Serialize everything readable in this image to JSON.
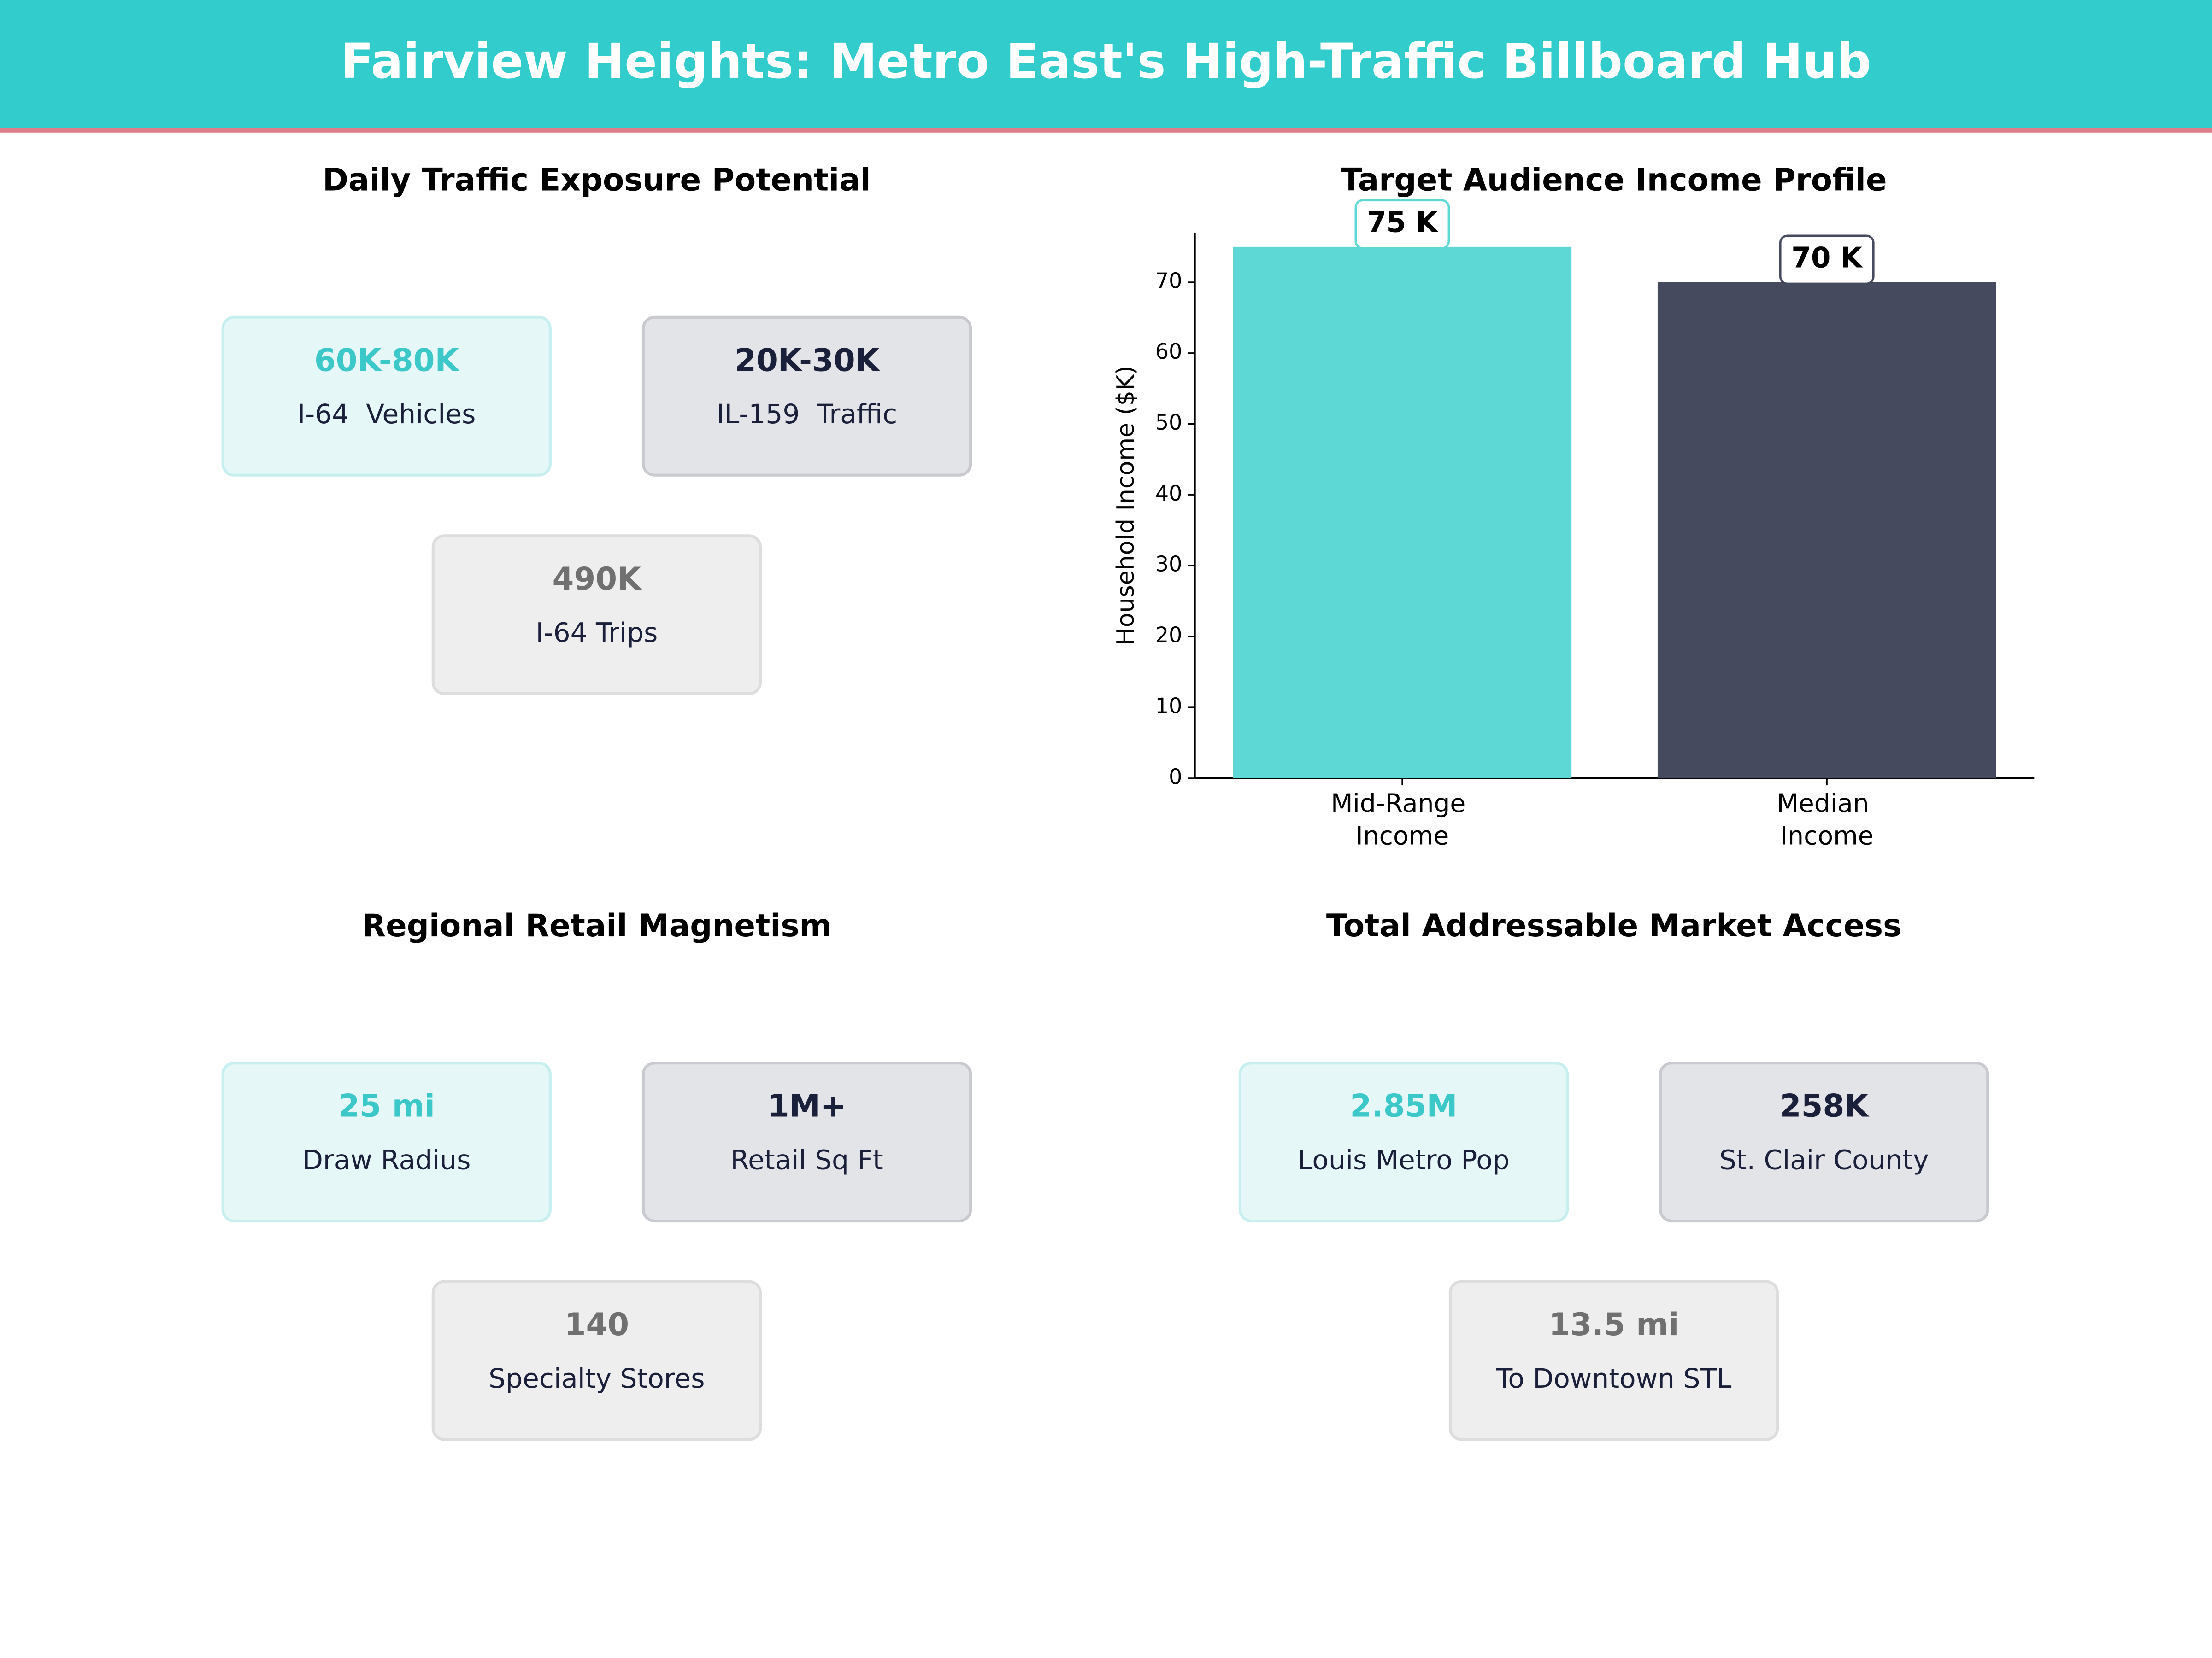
{
  "header": {
    "title": "Fairview Heights: Metro East's High-Traffic Billboard Hub"
  },
  "panels": [
    {
      "title": "Daily Traffic Exposure Potential",
      "cards": [
        {
          "value": "60K-80K",
          "label": "I-64  Vehicles"
        },
        {
          "value": "20K-30K",
          "label": "IL-159  Traffic"
        },
        {
          "value": "490K",
          "label": "I-64 Trips"
        }
      ]
    },
    {
      "title": "Regional Retail Magnetism",
      "cards": [
        {
          "value": "25 mi",
          "label": "Draw Radius"
        },
        {
          "value": "1M+",
          "label": "Retail Sq Ft"
        },
        {
          "value": "140",
          "label": "Specialty Stores"
        }
      ]
    },
    {
      "title": "Total Addressable Market Access",
      "cards": [
        {
          "value": "2.85M",
          "label": "Louis Metro Pop"
        },
        {
          "value": "258K",
          "label": "St. Clair County"
        },
        {
          "value": "13.5 mi",
          "label": "To Downtown STL"
        }
      ]
    }
  ],
  "chart_data": {
    "type": "bar",
    "title": "Target Audience Income Profile",
    "categories": [
      "Mid-Range Income",
      "Median Income"
    ],
    "values": [
      75,
      70
    ],
    "value_labels": [
      "75 K",
      "70 K"
    ],
    "colors": [
      "#5dd8d4",
      "#454a5f"
    ],
    "y_label": "Household Income ($K)",
    "ylim": [
      0,
      77
    ],
    "yticks": [
      0,
      10,
      20,
      30,
      40,
      50,
      60,
      70
    ]
  }
}
